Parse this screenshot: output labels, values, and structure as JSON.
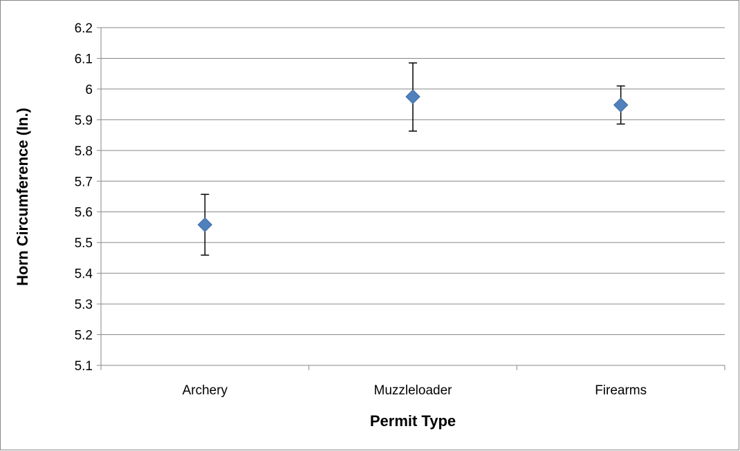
{
  "chart_data": {
    "type": "scatter",
    "title": "",
    "xlabel": "Permit Type",
    "ylabel": "Horn Circumference (In.)",
    "categories": [
      "Archery",
      "Muzzleloader",
      "Firearms"
    ],
    "series": [
      {
        "values": [
          5.558,
          5.975,
          5.948
        ],
        "error_upper": [
          5.657,
          6.085,
          6.01
        ],
        "error_lower": [
          5.459,
          5.863,
          5.886
        ]
      }
    ],
    "ylim": [
      5.1,
      6.2
    ],
    "yticks": [
      "5.1",
      "5.2",
      "5.3",
      "5.4",
      "5.5",
      "5.6",
      "5.7",
      "5.8",
      "5.9",
      "6",
      "6.1",
      "6.2"
    ],
    "grid": "horizontal",
    "legend": "none",
    "marker": "diamond",
    "colors": {
      "marker_fill": "#4F81BD",
      "marker_stroke": "#3D6B9F",
      "gridline": "#868686",
      "error_bar": "#000000"
    }
  }
}
